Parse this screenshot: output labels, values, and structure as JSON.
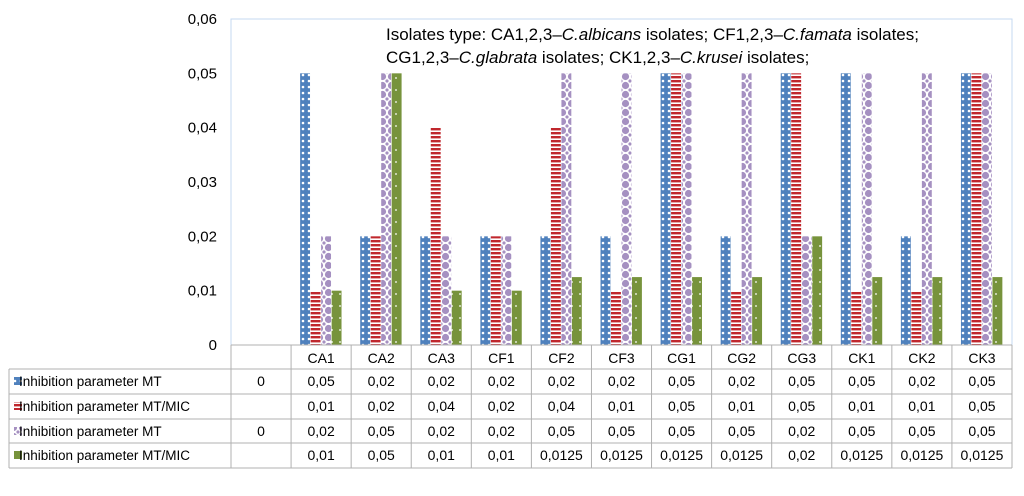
{
  "chart_data": {
    "type": "bar",
    "title": "Isolates type: CA1,2,3–C.albicans isolates; CF1,2,3–C.famata isolates; CG1,2,3–C.glabrata isolates;  CK1,2,3–C.krusei isolates;",
    "legend_lines": [
      [
        {
          "text": "Isolates type: CA1,2,3–",
          "italic": false
        },
        {
          "text": "C.albicans",
          "italic": true
        },
        {
          "text": " isolates; CF1,2,3–",
          "italic": false
        },
        {
          "text": "C.famata",
          "italic": true
        },
        {
          "text": " isolates;",
          "italic": false
        }
      ],
      [
        {
          "text": "CG1,2,3–",
          "italic": false
        },
        {
          "text": "C.glabrata",
          "italic": true
        },
        {
          "text": " isolates;  CK1,2,3–",
          "italic": false
        },
        {
          "text": "C.krusei",
          "italic": true
        },
        {
          "text": " isolates;",
          "italic": false
        }
      ]
    ],
    "categories": [
      "",
      "CA1",
      "CA2",
      "CA3",
      "CF1",
      "CF2",
      "CF3",
      "CG1",
      "CG2",
      "CG3",
      "CK1",
      "CK2",
      "CK3"
    ],
    "ylim": [
      0,
      0.06
    ],
    "yticks": [
      "0",
      "0,01",
      "0,02",
      "0,03",
      "0,04",
      "0,05",
      "0,06"
    ],
    "series": [
      {
        "name": "Inhibition parameter MT",
        "color": "#4F81BD",
        "pattern": "dots",
        "values": [
          0,
          0.05,
          0.02,
          0.02,
          0.02,
          0.02,
          0.02,
          0.05,
          0.02,
          0.05,
          0.05,
          0.02,
          0.05
        ],
        "labels": [
          "0",
          "0,05",
          "0,02",
          "0,02",
          "0,02",
          "0,02",
          "0,02",
          "0,05",
          "0,02",
          "0,05",
          "0,05",
          "0,02",
          "0,05"
        ]
      },
      {
        "name": "Inhibition parameter MT/MIC",
        "color": "#C0272D",
        "pattern": "hstripes",
        "values": [
          null,
          0.01,
          0.02,
          0.04,
          0.02,
          0.04,
          0.01,
          0.05,
          0.01,
          0.05,
          0.01,
          0.01,
          0.05
        ],
        "labels": [
          "",
          "0,01",
          "0,02",
          "0,04",
          "0,02",
          "0,04",
          "0,01",
          "0,05",
          "0,01",
          "0,05",
          "0,01",
          "0,01",
          "0,05"
        ]
      },
      {
        "name": "Inhibition parameter MT",
        "color": "#A590C1",
        "pattern": "circles",
        "values": [
          0,
          0.02,
          0.05,
          0.02,
          0.02,
          0.05,
          0.05,
          0.05,
          0.05,
          0.02,
          0.05,
          0.05,
          0.05
        ],
        "labels": [
          "0",
          "0,02",
          "0,05",
          "0,02",
          "0,02",
          "0,05",
          "0,05",
          "0,05",
          "0,05",
          "0,02",
          "0,05",
          "0,05",
          "0,05"
        ]
      },
      {
        "name": "Inhibition parameter MT/MIC",
        "color": "#77933C",
        "pattern": "sparse-dots",
        "values": [
          null,
          0.01,
          0.05,
          0.01,
          0.01,
          0.0125,
          0.0125,
          0.0125,
          0.0125,
          0.02,
          0.0125,
          0.0125,
          0.0125
        ],
        "labels": [
          "",
          "0,01",
          "0,05",
          "0,01",
          "0,01",
          "0,0125",
          "0,0125",
          "0,0125",
          "0,0125",
          "0,02",
          "0,0125",
          "0,0125",
          "0,0125"
        ]
      }
    ]
  }
}
